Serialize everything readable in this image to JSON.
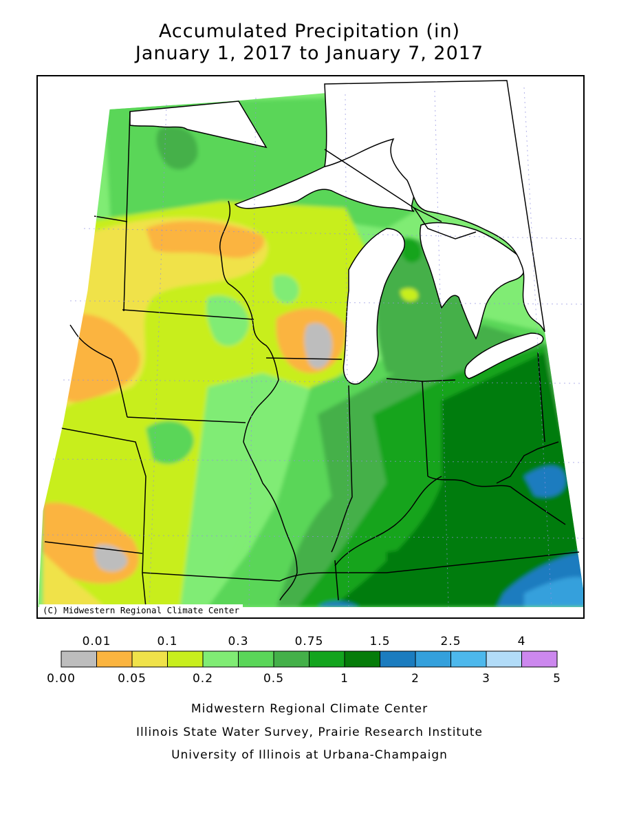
{
  "title_line1": "Accumulated Precipitation (in)",
  "title_line2": "January 1, 2017 to January 7, 2017",
  "copyright": "(C) Midwestern Regional Climate Center",
  "legend": {
    "bins": [
      {
        "color": "#bdbdbd"
      },
      {
        "color": "#fbb43f"
      },
      {
        "color": "#f0e24a"
      },
      {
        "color": "#c8ee1e"
      },
      {
        "color": "#80ec74"
      },
      {
        "color": "#5ad659"
      },
      {
        "color": "#44b049"
      },
      {
        "color": "#13a41e"
      },
      {
        "color": "#067c0a"
      },
      {
        "color": "#1b7cbf"
      },
      {
        "color": "#34a0dc"
      },
      {
        "color": "#4db8ec"
      },
      {
        "color": "#b2dcf8"
      },
      {
        "color": "#cc88ee"
      }
    ],
    "top_labels": [
      "0.01",
      "0.1",
      "0.3",
      "0.75",
      "1.5",
      "2.5",
      "4"
    ],
    "bottom_labels": [
      "0.00",
      "0.05",
      "0.2",
      "0.5",
      "1",
      "2",
      "3",
      "5"
    ]
  },
  "footer": {
    "line1": "Midwestern Regional Climate Center",
    "line2": "Illinois State Water Survey, Prairie Research Institute",
    "line3": "University of Illinois at Urbana-Champaign"
  }
}
